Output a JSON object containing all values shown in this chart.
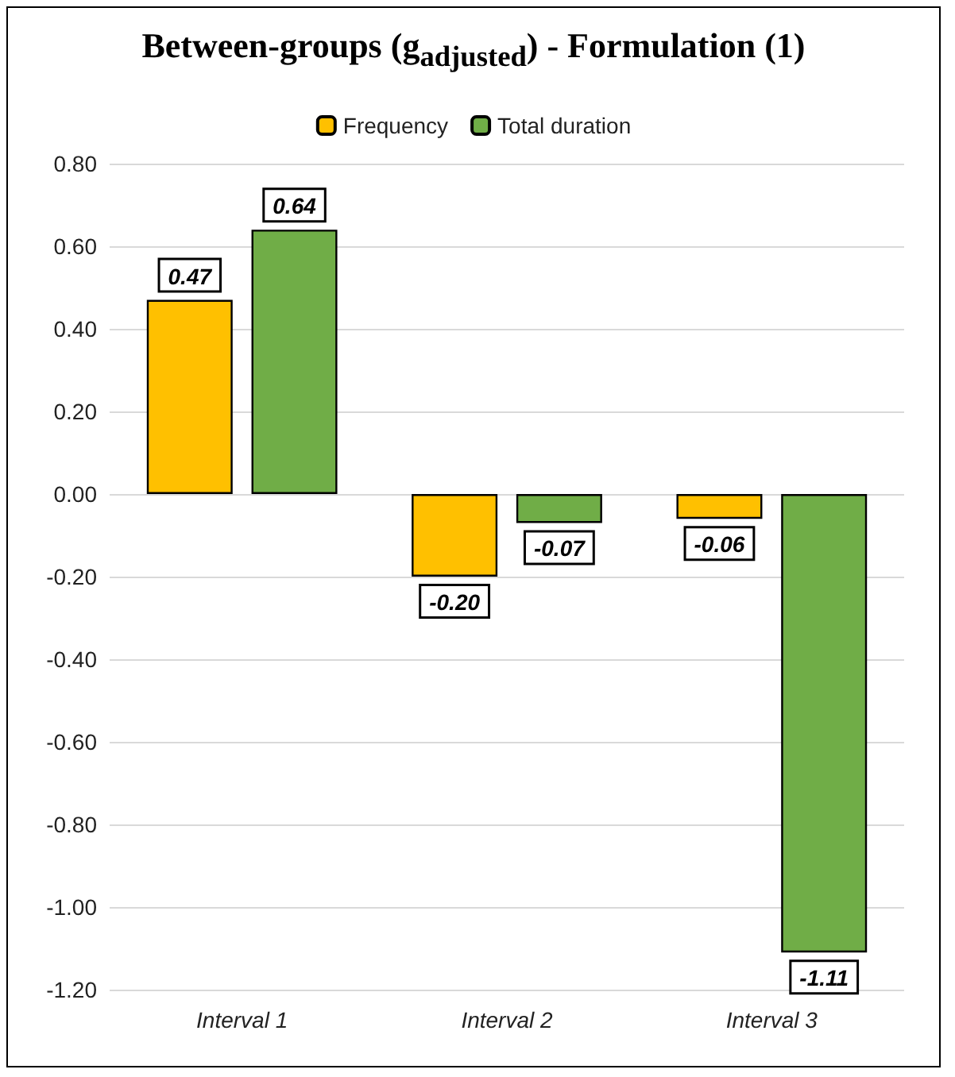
{
  "chart_data": {
    "type": "bar",
    "title": "Between-groups (g$_{adjusted}$) - Formulation (1)",
    "categories": [
      "Interval 1",
      "Interval 2",
      "Interval 3"
    ],
    "series": [
      {
        "name": "Frequency",
        "color": "#ffc000",
        "values": [
          0.47,
          -0.2,
          -0.06
        ],
        "value_labels": [
          "0.47",
          "-0.20",
          "-0.06"
        ]
      },
      {
        "name": "Total duration",
        "color": "#70ad47",
        "values": [
          0.64,
          -0.07,
          -1.11
        ],
        "value_labels": [
          "0.64",
          "-0.07",
          "-1.11"
        ]
      }
    ],
    "ylim": [
      -1.2,
      0.8
    ],
    "yticks": [
      {
        "value": -1.2,
        "label": "-1.20"
      },
      {
        "value": -1.0,
        "label": "-1.00"
      },
      {
        "value": -0.8,
        "label": "-0.80"
      },
      {
        "value": -0.6,
        "label": "-0.60"
      },
      {
        "value": -0.4,
        "label": "-0.40"
      },
      {
        "value": -0.2,
        "label": "-0.20"
      },
      {
        "value": 0,
        "label": "0.00"
      },
      {
        "value": 0.2,
        "label": "0.20"
      },
      {
        "value": 0.4,
        "label": "0.40"
      },
      {
        "value": 0.6,
        "label": "0.60"
      },
      {
        "value": 0.8,
        "label": "0.80"
      }
    ],
    "grid": "y",
    "legend": "top"
  }
}
